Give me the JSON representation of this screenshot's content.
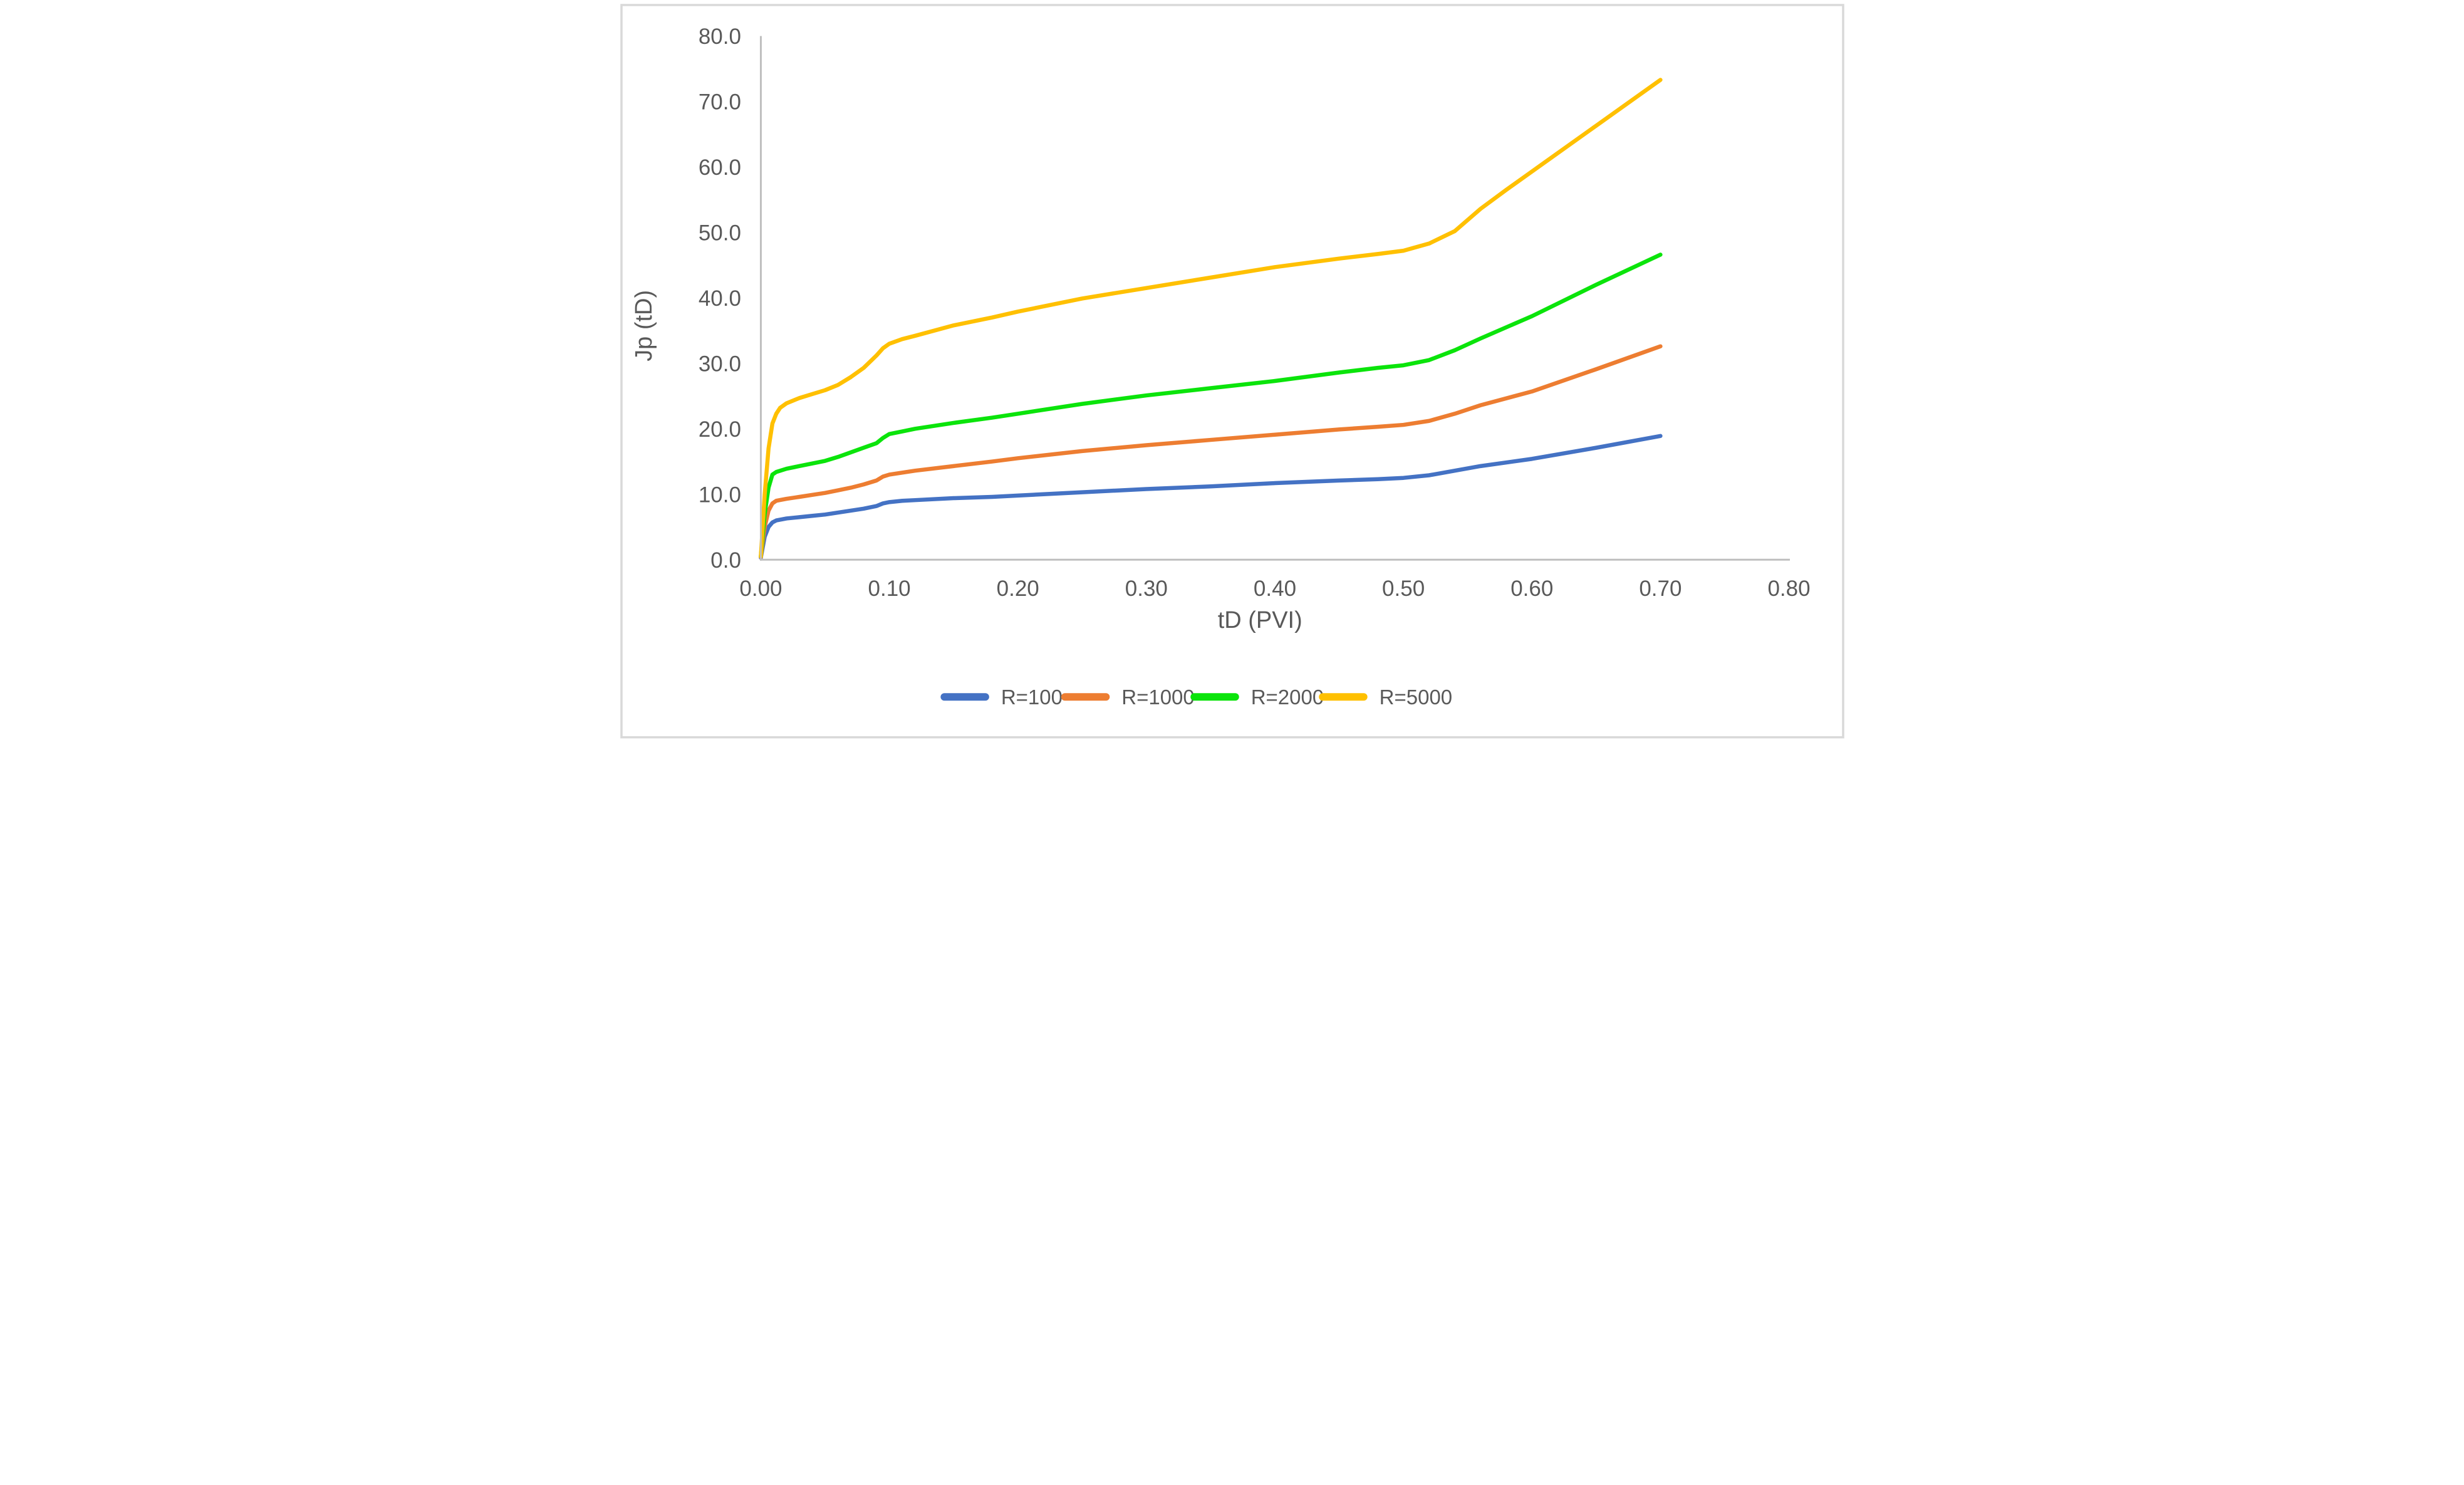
{
  "chart_data": {
    "type": "line",
    "title": "",
    "xlabel": "tD (PVI)",
    "ylabel": "Jp (tD)",
    "xlim": [
      0.0,
      0.8
    ],
    "ylim": [
      0.0,
      80.0
    ],
    "grid": false,
    "legend_position": "bottom",
    "x_ticks": [
      "0.00",
      "0.10",
      "0.20",
      "0.30",
      "0.40",
      "0.50",
      "0.60",
      "0.70",
      "0.80"
    ],
    "y_ticks": [
      "0.0",
      "10.0",
      "20.0",
      "30.0",
      "40.0",
      "50.0",
      "60.0",
      "70.0",
      "80.0"
    ],
    "series": [
      {
        "name": "R=100",
        "color": "#4472C4",
        "points": [
          [
            0,
            0.3
          ],
          [
            0.003,
            3.5
          ],
          [
            0.006,
            5.0
          ],
          [
            0.009,
            5.7
          ],
          [
            0.012,
            6.0
          ],
          [
            0.02,
            6.3
          ],
          [
            0.03,
            6.5
          ],
          [
            0.04,
            6.7
          ],
          [
            0.05,
            6.9
          ],
          [
            0.06,
            7.2
          ],
          [
            0.07,
            7.5
          ],
          [
            0.08,
            7.8
          ],
          [
            0.09,
            8.2
          ],
          [
            0.095,
            8.6
          ],
          [
            0.1,
            8.8
          ],
          [
            0.11,
            9.0
          ],
          [
            0.12,
            9.1
          ],
          [
            0.15,
            9.4
          ],
          [
            0.18,
            9.6
          ],
          [
            0.2,
            9.8
          ],
          [
            0.25,
            10.3
          ],
          [
            0.3,
            10.8
          ],
          [
            0.35,
            11.2
          ],
          [
            0.4,
            11.7
          ],
          [
            0.45,
            12.1
          ],
          [
            0.48,
            12.3
          ],
          [
            0.5,
            12.5
          ],
          [
            0.52,
            12.9
          ],
          [
            0.54,
            13.6
          ],
          [
            0.56,
            14.3
          ],
          [
            0.6,
            15.4
          ],
          [
            0.65,
            17.1
          ],
          [
            0.7,
            18.9
          ]
        ]
      },
      {
        "name": "R=1000",
        "color": "#ED7D31",
        "points": [
          [
            0,
            0.4
          ],
          [
            0.003,
            5.0
          ],
          [
            0.006,
            7.5
          ],
          [
            0.009,
            8.6
          ],
          [
            0.012,
            9.0
          ],
          [
            0.02,
            9.3
          ],
          [
            0.03,
            9.6
          ],
          [
            0.04,
            9.9
          ],
          [
            0.05,
            10.2
          ],
          [
            0.06,
            10.6
          ],
          [
            0.07,
            11.0
          ],
          [
            0.08,
            11.5
          ],
          [
            0.09,
            12.1
          ],
          [
            0.095,
            12.7
          ],
          [
            0.1,
            13.0
          ],
          [
            0.11,
            13.3
          ],
          [
            0.12,
            13.6
          ],
          [
            0.15,
            14.3
          ],
          [
            0.18,
            15.0
          ],
          [
            0.2,
            15.5
          ],
          [
            0.25,
            16.6
          ],
          [
            0.3,
            17.5
          ],
          [
            0.35,
            18.3
          ],
          [
            0.4,
            19.1
          ],
          [
            0.45,
            19.9
          ],
          [
            0.48,
            20.3
          ],
          [
            0.5,
            20.6
          ],
          [
            0.52,
            21.2
          ],
          [
            0.54,
            22.3
          ],
          [
            0.56,
            23.6
          ],
          [
            0.6,
            25.7
          ],
          [
            0.65,
            29.1
          ],
          [
            0.7,
            32.6
          ]
        ]
      },
      {
        "name": "R=2000",
        "color": "#0BE40B",
        "points": [
          [
            0,
            0.5
          ],
          [
            0.003,
            7.0
          ],
          [
            0.006,
            11.0
          ],
          [
            0.009,
            13.0
          ],
          [
            0.012,
            13.4
          ],
          [
            0.02,
            13.9
          ],
          [
            0.03,
            14.3
          ],
          [
            0.04,
            14.7
          ],
          [
            0.05,
            15.1
          ],
          [
            0.06,
            15.7
          ],
          [
            0.07,
            16.4
          ],
          [
            0.08,
            17.1
          ],
          [
            0.09,
            17.8
          ],
          [
            0.095,
            18.6
          ],
          [
            0.1,
            19.2
          ],
          [
            0.11,
            19.6
          ],
          [
            0.12,
            20.0
          ],
          [
            0.15,
            20.9
          ],
          [
            0.18,
            21.7
          ],
          [
            0.2,
            22.3
          ],
          [
            0.25,
            23.8
          ],
          [
            0.3,
            25.1
          ],
          [
            0.35,
            26.2
          ],
          [
            0.4,
            27.3
          ],
          [
            0.45,
            28.6
          ],
          [
            0.48,
            29.3
          ],
          [
            0.5,
            29.7
          ],
          [
            0.52,
            30.5
          ],
          [
            0.54,
            32.0
          ],
          [
            0.56,
            33.8
          ],
          [
            0.6,
            37.2
          ],
          [
            0.65,
            42.0
          ],
          [
            0.7,
            46.6
          ]
        ]
      },
      {
        "name": "R=5000",
        "color": "#FFC000",
        "points": [
          [
            0,
            0.5
          ],
          [
            0.003,
            10.0
          ],
          [
            0.006,
            17.0
          ],
          [
            0.009,
            20.8
          ],
          [
            0.012,
            22.3
          ],
          [
            0.015,
            23.2
          ],
          [
            0.02,
            23.9
          ],
          [
            0.03,
            24.7
          ],
          [
            0.04,
            25.3
          ],
          [
            0.05,
            25.9
          ],
          [
            0.06,
            26.7
          ],
          [
            0.07,
            27.9
          ],
          [
            0.08,
            29.3
          ],
          [
            0.09,
            31.2
          ],
          [
            0.095,
            32.3
          ],
          [
            0.1,
            33.0
          ],
          [
            0.11,
            33.7
          ],
          [
            0.12,
            34.2
          ],
          [
            0.15,
            35.8
          ],
          [
            0.18,
            37.0
          ],
          [
            0.2,
            37.9
          ],
          [
            0.25,
            39.9
          ],
          [
            0.3,
            41.5
          ],
          [
            0.35,
            43.1
          ],
          [
            0.4,
            44.7
          ],
          [
            0.45,
            46.0
          ],
          [
            0.48,
            46.7
          ],
          [
            0.5,
            47.2
          ],
          [
            0.52,
            48.3
          ],
          [
            0.54,
            50.2
          ],
          [
            0.56,
            53.6
          ],
          [
            0.58,
            56.5
          ],
          [
            0.6,
            59.3
          ],
          [
            0.65,
            66.3
          ],
          [
            0.7,
            73.3
          ]
        ]
      }
    ]
  },
  "colors": {
    "axis_line": "#BFBFBF",
    "tick_text": "#595959",
    "title_text": "#595959",
    "legend_text": "#595959",
    "outer_border": "#D9D9D9",
    "background": "#FFFFFF"
  }
}
